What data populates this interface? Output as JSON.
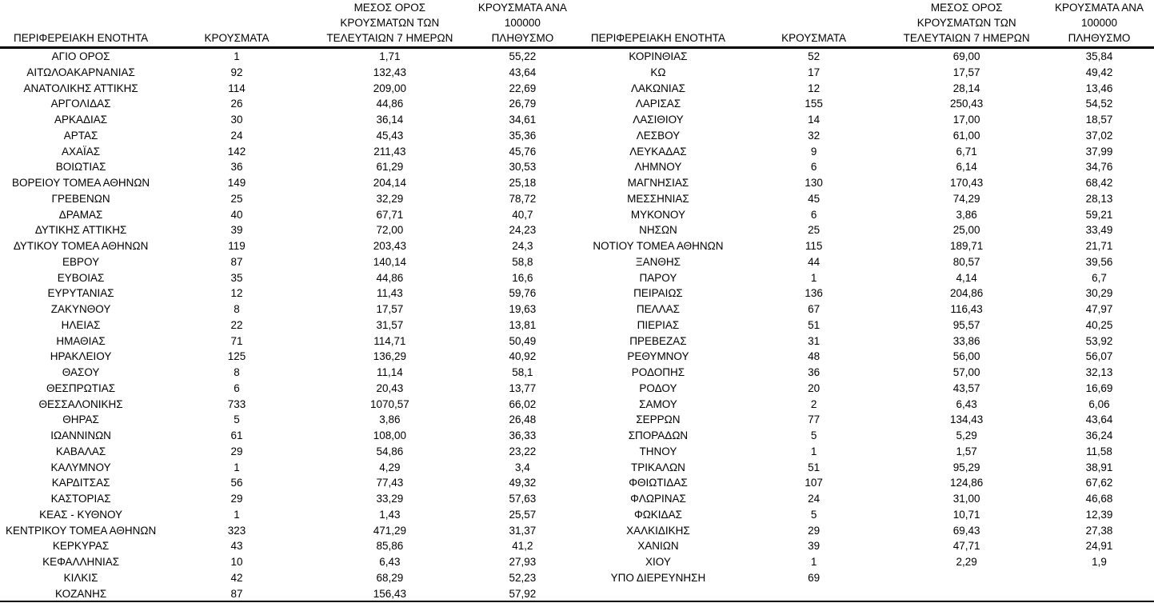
{
  "colors": {
    "text": "#000000",
    "background": "#ffffff",
    "rule": "#000000"
  },
  "columns": [
    "ΠΕΡΙΦΕΡΕΙΑΚΗ ΕΝΟΤΗΤΑ",
    "ΚΡΟΥΣΜΑΤΑ",
    "ΜΕΣΟΣ ΟΡΟΣ\nΚΡΟΥΣΜΑΤΩΝ ΤΩΝ\nΤΕΛΕΥΤΑΙΩΝ 7 ΗΜΕΡΩΝ",
    "ΚΡΟΥΣΜΑΤΑ ΑΝΑ 100000\nΠΛΗΘΥΣΜΟ"
  ],
  "left_table": {
    "rows": [
      {
        "region": "ΑΓΙΟ ΟΡΟΣ",
        "cases": "1",
        "avg7": "1,71",
        "per100k": "55,22"
      },
      {
        "region": "ΑΙΤΩΛΟΑΚΑΡΝΑΝΙΑΣ",
        "cases": "92",
        "avg7": "132,43",
        "per100k": "43,64"
      },
      {
        "region": "ΑΝΑΤΟΛΙΚΗΣ ΑΤΤΙΚΗΣ",
        "cases": "114",
        "avg7": "209,00",
        "per100k": "22,69"
      },
      {
        "region": "ΑΡΓΟΛΙΔΑΣ",
        "cases": "26",
        "avg7": "44,86",
        "per100k": "26,79"
      },
      {
        "region": "ΑΡΚΑΔΙΑΣ",
        "cases": "30",
        "avg7": "36,14",
        "per100k": "34,61"
      },
      {
        "region": "ΑΡΤΑΣ",
        "cases": "24",
        "avg7": "45,43",
        "per100k": "35,36"
      },
      {
        "region": "ΑΧΑΪΑΣ",
        "cases": "142",
        "avg7": "211,43",
        "per100k": "45,76"
      },
      {
        "region": "ΒΟΙΩΤΙΑΣ",
        "cases": "36",
        "avg7": "61,29",
        "per100k": "30,53"
      },
      {
        "region": "ΒΟΡΕΙΟΥ ΤΟΜΕΑ ΑΘΗΝΩΝ",
        "cases": "149",
        "avg7": "204,14",
        "per100k": "25,18"
      },
      {
        "region": "ΓΡΕΒΕΝΩΝ",
        "cases": "25",
        "avg7": "32,29",
        "per100k": "78,72"
      },
      {
        "region": "ΔΡΑΜΑΣ",
        "cases": "40",
        "avg7": "67,71",
        "per100k": "40,7"
      },
      {
        "region": "ΔΥΤΙΚΗΣ ΑΤΤΙΚΗΣ",
        "cases": "39",
        "avg7": "72,00",
        "per100k": "24,23"
      },
      {
        "region": "ΔΥΤΙΚΟΥ ΤΟΜΕΑ ΑΘΗΝΩΝ",
        "cases": "119",
        "avg7": "203,43",
        "per100k": "24,3"
      },
      {
        "region": "ΕΒΡΟΥ",
        "cases": "87",
        "avg7": "140,14",
        "per100k": "58,8"
      },
      {
        "region": "ΕΥΒΟΙΑΣ",
        "cases": "35",
        "avg7": "44,86",
        "per100k": "16,6"
      },
      {
        "region": "ΕΥΡΥΤΑΝΙΑΣ",
        "cases": "12",
        "avg7": "11,43",
        "per100k": "59,76"
      },
      {
        "region": "ΖΑΚΥΝΘΟΥ",
        "cases": "8",
        "avg7": "17,57",
        "per100k": "19,63"
      },
      {
        "region": "ΗΛΕΙΑΣ",
        "cases": "22",
        "avg7": "31,57",
        "per100k": "13,81"
      },
      {
        "region": "ΗΜΑΘΙΑΣ",
        "cases": "71",
        "avg7": "114,71",
        "per100k": "50,49"
      },
      {
        "region": "ΗΡΑΚΛΕΙΟΥ",
        "cases": "125",
        "avg7": "136,29",
        "per100k": "40,92"
      },
      {
        "region": "ΘΑΣΟΥ",
        "cases": "8",
        "avg7": "11,14",
        "per100k": "58,1"
      },
      {
        "region": "ΘΕΣΠΡΩΤΙΑΣ",
        "cases": "6",
        "avg7": "20,43",
        "per100k": "13,77"
      },
      {
        "region": "ΘΕΣΣΑΛΟΝΙΚΗΣ",
        "cases": "733",
        "avg7": "1070,57",
        "per100k": "66,02"
      },
      {
        "region": "ΘΗΡΑΣ",
        "cases": "5",
        "avg7": "3,86",
        "per100k": "26,48"
      },
      {
        "region": "ΙΩΑΝΝΙΝΩΝ",
        "cases": "61",
        "avg7": "108,00",
        "per100k": "36,33"
      },
      {
        "region": "ΚΑΒΑΛΑΣ",
        "cases": "29",
        "avg7": "54,86",
        "per100k": "23,22"
      },
      {
        "region": "ΚΑΛΥΜΝΟΥ",
        "cases": "1",
        "avg7": "4,29",
        "per100k": "3,4"
      },
      {
        "region": "ΚΑΡΔΙΤΣΑΣ",
        "cases": "56",
        "avg7": "77,43",
        "per100k": "49,32"
      },
      {
        "region": "ΚΑΣΤΟΡΙΑΣ",
        "cases": "29",
        "avg7": "33,29",
        "per100k": "57,63"
      },
      {
        "region": "ΚΕΑΣ - ΚΥΘΝΟΥ",
        "cases": "1",
        "avg7": "1,43",
        "per100k": "25,57"
      },
      {
        "region": "ΚΕΝΤΡΙΚΟΥ ΤΟΜΕΑ ΑΘΗΝΩΝ",
        "cases": "323",
        "avg7": "471,29",
        "per100k": "31,37"
      },
      {
        "region": "ΚΕΡΚΥΡΑΣ",
        "cases": "43",
        "avg7": "85,86",
        "per100k": "41,2"
      },
      {
        "region": "ΚΕΦΑΛΛΗΝΙΑΣ",
        "cases": "10",
        "avg7": "6,43",
        "per100k": "27,93"
      },
      {
        "region": "ΚΙΛΚΙΣ",
        "cases": "42",
        "avg7": "68,29",
        "per100k": "52,23"
      },
      {
        "region": "ΚΟΖΑΝΗΣ",
        "cases": "87",
        "avg7": "156,43",
        "per100k": "57,92"
      }
    ]
  },
  "right_table": {
    "rows": [
      {
        "region": "ΚΟΡΙΝΘΙΑΣ",
        "cases": "52",
        "avg7": "69,00",
        "per100k": "35,84"
      },
      {
        "region": "ΚΩ",
        "cases": "17",
        "avg7": "17,57",
        "per100k": "49,42"
      },
      {
        "region": "ΛΑΚΩΝΙΑΣ",
        "cases": "12",
        "avg7": "28,14",
        "per100k": "13,46"
      },
      {
        "region": "ΛΑΡΙΣΑΣ",
        "cases": "155",
        "avg7": "250,43",
        "per100k": "54,52"
      },
      {
        "region": "ΛΑΣΙΘΙΟΥ",
        "cases": "14",
        "avg7": "17,00",
        "per100k": "18,57"
      },
      {
        "region": "ΛΕΣΒΟΥ",
        "cases": "32",
        "avg7": "61,00",
        "per100k": "37,02"
      },
      {
        "region": "ΛΕΥΚΑΔΑΣ",
        "cases": "9",
        "avg7": "6,71",
        "per100k": "37,99"
      },
      {
        "region": "ΛΗΜΝΟΥ",
        "cases": "6",
        "avg7": "6,14",
        "per100k": "34,76"
      },
      {
        "region": "ΜΑΓΝΗΣΙΑΣ",
        "cases": "130",
        "avg7": "170,43",
        "per100k": "68,42"
      },
      {
        "region": "ΜΕΣΣΗΝΙΑΣ",
        "cases": "45",
        "avg7": "74,29",
        "per100k": "28,13"
      },
      {
        "region": "ΜΥΚΟΝΟΥ",
        "cases": "6",
        "avg7": "3,86",
        "per100k": "59,21"
      },
      {
        "region": "ΝΗΣΩΝ",
        "cases": "25",
        "avg7": "25,00",
        "per100k": "33,49"
      },
      {
        "region": "ΝΟΤΙΟΥ ΤΟΜΕΑ ΑΘΗΝΩΝ",
        "cases": "115",
        "avg7": "189,71",
        "per100k": "21,71"
      },
      {
        "region": "ΞΑΝΘΗΣ",
        "cases": "44",
        "avg7": "80,57",
        "per100k": "39,56"
      },
      {
        "region": "ΠΑΡΟΥ",
        "cases": "1",
        "avg7": "4,14",
        "per100k": "6,7"
      },
      {
        "region": "ΠΕΙΡΑΙΩΣ",
        "cases": "136",
        "avg7": "204,86",
        "per100k": "30,29"
      },
      {
        "region": "ΠΕΛΛΑΣ",
        "cases": "67",
        "avg7": "116,43",
        "per100k": "47,97"
      },
      {
        "region": "ΠΙΕΡΙΑΣ",
        "cases": "51",
        "avg7": "95,57",
        "per100k": "40,25"
      },
      {
        "region": "ΠΡΕΒΕΖΑΣ",
        "cases": "31",
        "avg7": "33,86",
        "per100k": "53,92"
      },
      {
        "region": "ΡΕΘΥΜΝΟΥ",
        "cases": "48",
        "avg7": "56,00",
        "per100k": "56,07"
      },
      {
        "region": "ΡΟΔΟΠΗΣ",
        "cases": "36",
        "avg7": "57,00",
        "per100k": "32,13"
      },
      {
        "region": "ΡΟΔΟΥ",
        "cases": "20",
        "avg7": "43,57",
        "per100k": "16,69"
      },
      {
        "region": "ΣΑΜΟΥ",
        "cases": "2",
        "avg7": "6,43",
        "per100k": "6,06"
      },
      {
        "region": "ΣΕΡΡΩΝ",
        "cases": "77",
        "avg7": "134,43",
        "per100k": "43,64"
      },
      {
        "region": "ΣΠΟΡΑΔΩΝ",
        "cases": "5",
        "avg7": "5,29",
        "per100k": "36,24"
      },
      {
        "region": "ΤΗΝΟΥ",
        "cases": "1",
        "avg7": "1,57",
        "per100k": "11,58"
      },
      {
        "region": "ΤΡΙΚΑΛΩΝ",
        "cases": "51",
        "avg7": "95,29",
        "per100k": "38,91"
      },
      {
        "region": "ΦΘΙΩΤΙΔΑΣ",
        "cases": "107",
        "avg7": "124,86",
        "per100k": "67,62"
      },
      {
        "region": "ΦΛΩΡΙΝΑΣ",
        "cases": "24",
        "avg7": "31,00",
        "per100k": "46,68"
      },
      {
        "region": "ΦΩΚΙΔΑΣ",
        "cases": "5",
        "avg7": "10,71",
        "per100k": "12,39"
      },
      {
        "region": "ΧΑΛΚΙΔΙΚΗΣ",
        "cases": "29",
        "avg7": "69,43",
        "per100k": "27,38"
      },
      {
        "region": "ΧΑΝΙΩΝ",
        "cases": "39",
        "avg7": "47,71",
        "per100k": "24,91"
      },
      {
        "region": "ΧΙΟΥ",
        "cases": "1",
        "avg7": "2,29",
        "per100k": "1,9"
      },
      {
        "region": "ΥΠΟ ΔΙΕΡΕΥΝΗΣΗ",
        "cases": "69",
        "avg7": "",
        "per100k": ""
      }
    ]
  }
}
